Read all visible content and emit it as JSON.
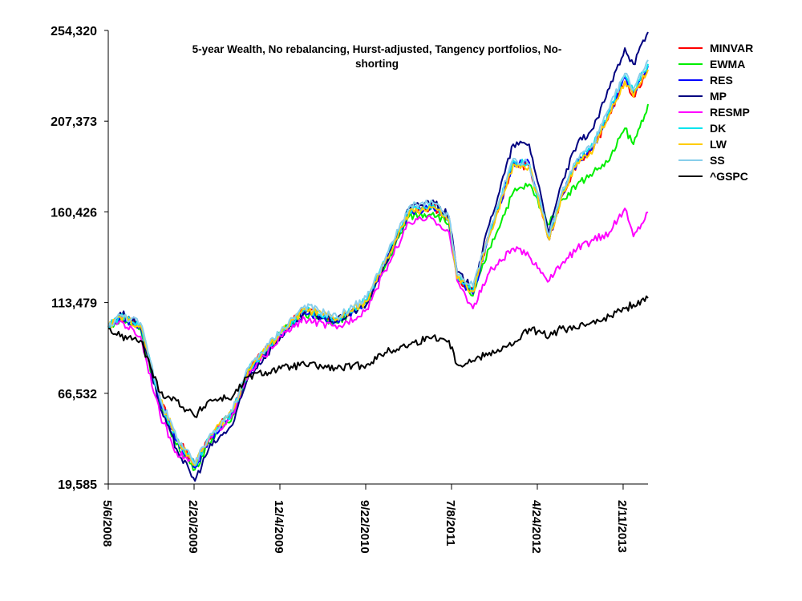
{
  "chart_data": {
    "type": "line",
    "title": [
      "5-year Wealth, No rebalancing, Hurst-adjusted, Tangency portfolios, No-",
      "shorting"
    ],
    "xlabel": "",
    "ylabel": "",
    "x_unit": "trading day index",
    "xlim": [
      0,
      1258
    ],
    "ylim": [
      19585,
      254320
    ],
    "y_ticks": [
      19585,
      66532,
      113479,
      160426,
      207373,
      254320
    ],
    "y_tick_labels": [
      "19,585",
      "66,532",
      "113,479",
      "160,426",
      "207,373",
      "254,320"
    ],
    "x_ticks": [
      0,
      200,
      400,
      600,
      800,
      1000,
      1200
    ],
    "x_tick_labels": [
      "5/6/2008",
      "2/20/2009",
      "12/4/2009",
      "9/22/2010",
      "7/8/2011",
      "4/24/2012",
      "2/11/2013"
    ],
    "grid": false,
    "legend_position": "right",
    "x": [
      0,
      28,
      75,
      121,
      159,
      202,
      234,
      290,
      327,
      402,
      458,
      533,
      602,
      645,
      701,
      757,
      794,
      813,
      850,
      888,
      944,
      981,
      1028,
      1056,
      1093,
      1131,
      1168,
      1204,
      1224,
      1258
    ],
    "series": [
      {
        "name": "MINVAR",
        "color": "#ff0000",
        "values": [
          100900,
          106000,
          101500,
          63500,
          43500,
          29500,
          43500,
          57500,
          79000,
          98000,
          110000,
          105000,
          114000,
          134000,
          160000,
          163000,
          156000,
          126000,
          119000,
          148000,
          185000,
          184000,
          146000,
          168000,
          186000,
          193000,
          211000,
          228000,
          220000,
          234000
        ]
      },
      {
        "name": "EWMA",
        "color": "#00ee00",
        "values": [
          100900,
          105000,
          100000,
          60000,
          40000,
          27000,
          41000,
          55000,
          77000,
          98000,
          108000,
          103000,
          113000,
          132000,
          158000,
          160000,
          154000,
          126000,
          117000,
          141500,
          170500,
          174700,
          154000,
          166400,
          174700,
          180900,
          187100,
          203700,
          195400,
          216200
        ]
      },
      {
        "name": "RES",
        "color": "#0000ff",
        "values": [
          100900,
          106000,
          101000,
          62000,
          42000,
          28000,
          42000,
          56000,
          78000,
          97000,
          108000,
          104000,
          113000,
          134000,
          160000,
          163000,
          156000,
          127000,
          118000,
          148000,
          186000,
          186000,
          146000,
          168000,
          186000,
          194000,
          212000,
          230000,
          222000,
          236000
        ]
      },
      {
        "name": "MP",
        "color": "#000080",
        "values": [
          100900,
          108300,
          102100,
          58600,
          37800,
          21200,
          37800,
          50300,
          75200,
          95900,
          108300,
          104200,
          112500,
          133200,
          162200,
          166400,
          158100,
          129100,
          120800,
          154000,
          195400,
          195400,
          149800,
          174700,
          195400,
          203700,
          224400,
          245200,
          236900,
          253500
        ]
      },
      {
        "name": "RESMP",
        "color": "#ff00ff",
        "values": [
          100900,
          104000,
          96000,
          55000,
          36000,
          30000,
          42000,
          56000,
          76000,
          96000,
          105000,
          100000,
          110000,
          130000,
          155000,
          157000,
          150000,
          124900,
          110400,
          129100,
          141500,
          137400,
          124900,
          133200,
          141500,
          145700,
          149800,
          162200,
          147700,
          160200
        ]
      },
      {
        "name": "DK",
        "color": "#00e5ee",
        "values": [
          100900,
          106500,
          102000,
          63000,
          43000,
          29000,
          43000,
          57000,
          79000,
          98000,
          110000,
          105000,
          115000,
          135000,
          161000,
          164000,
          157000,
          127000,
          120000,
          149000,
          187000,
          185000,
          147000,
          169000,
          187000,
          195000,
          213000,
          231000,
          223000,
          237000
        ]
      },
      {
        "name": "LW",
        "color": "#ffcc00",
        "values": [
          100900,
          106000,
          101500,
          63500,
          43500,
          29500,
          43500,
          57500,
          79000,
          98000,
          110000,
          105000,
          114000,
          134000,
          160000,
          163000,
          156000,
          126000,
          119000,
          148000,
          185000,
          184000,
          146000,
          168000,
          186000,
          193000,
          211000,
          228000,
          220000,
          234000
        ]
      },
      {
        "name": "SS",
        "color": "#87ceeb",
        "values": [
          100900,
          107000,
          103000,
          64000,
          44000,
          30000,
          44000,
          58000,
          80000,
          99000,
          112000,
          106000,
          116000,
          136000,
          163000,
          165000,
          158000,
          128000,
          122000,
          150000,
          188000,
          185000,
          148000,
          170000,
          188000,
          196000,
          214000,
          232000,
          224000,
          239000
        ]
      },
      {
        "name": "^GSPC",
        "color": "#000000",
        "values": [
          100000,
          95900,
          93800,
          66900,
          62700,
          54400,
          62700,
          64800,
          75200,
          79300,
          81400,
          79300,
          81400,
          87600,
          91700,
          95900,
          93800,
          81400,
          83400,
          87600,
          91700,
          100000,
          95900,
          100000,
          100000,
          104200,
          106300,
          110400,
          112500,
          115800
        ]
      }
    ]
  }
}
